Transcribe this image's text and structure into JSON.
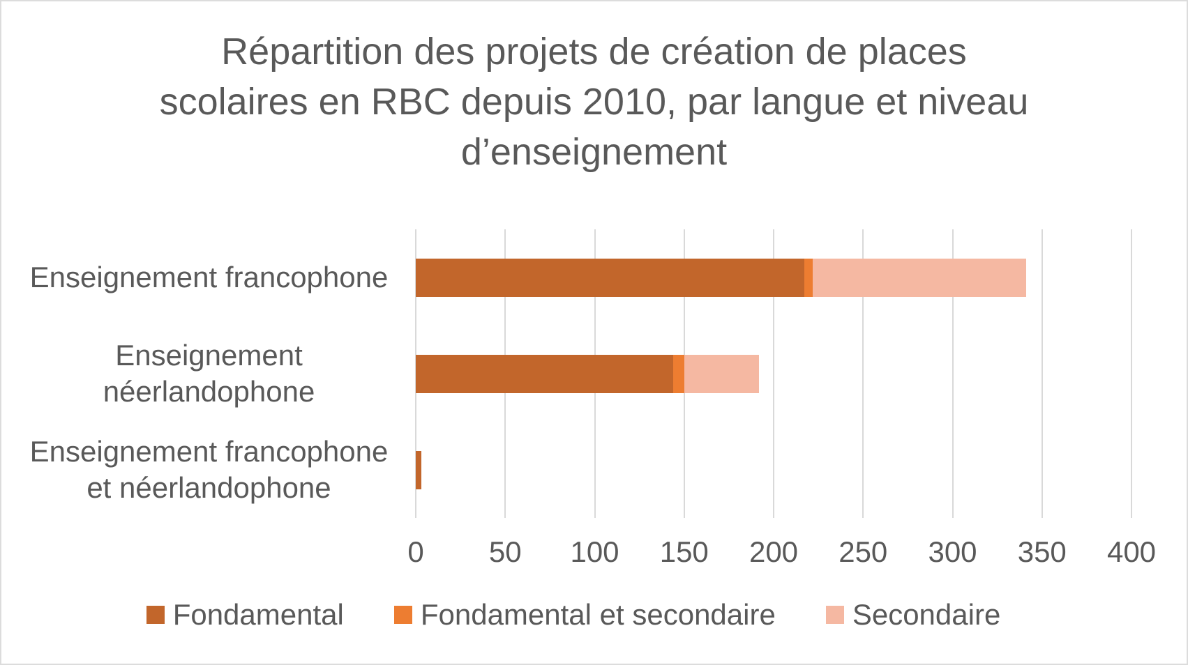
{
  "title": "Répartition des projets de création de places scolaires en RBC depuis 2010, par langue et niveau d’enseignement",
  "colors": {
    "fondamental": "#c2662b",
    "fondamental_et_secondaire": "#ed7d31",
    "secondaire": "#f5b8a2",
    "text": "#595959",
    "gridline": "#d9d9d9",
    "border": "#dcdcdc",
    "background": "#ffffff"
  },
  "chart_data": {
    "type": "bar",
    "orientation": "horizontal",
    "stacked": true,
    "title": "Répartition des projets de création de places scolaires en RBC depuis 2010, par langue et niveau d’enseignement",
    "categories": [
      "Enseignement francophone",
      "Enseignement néerlandophone",
      "Enseignement francophone et néerlandophone"
    ],
    "series": [
      {
        "name": "Fondamental",
        "color": "#c2662b",
        "values": [
          217,
          144,
          3
        ]
      },
      {
        "name": "Fondamental et secondaire",
        "color": "#ed7d31",
        "values": [
          5,
          6,
          0
        ]
      },
      {
        "name": "Secondaire",
        "color": "#f5b8a2",
        "values": [
          119,
          42,
          0
        ]
      }
    ],
    "totals": [
      341,
      192,
      3
    ],
    "xlabel": "",
    "ylabel": "",
    "xlim": [
      0,
      400
    ],
    "x_tick_step": 50,
    "x_tick_labels": [
      "0",
      "50",
      "100",
      "150",
      "200",
      "250",
      "300",
      "350",
      "400"
    ],
    "grid": true,
    "legend_position": "bottom"
  }
}
